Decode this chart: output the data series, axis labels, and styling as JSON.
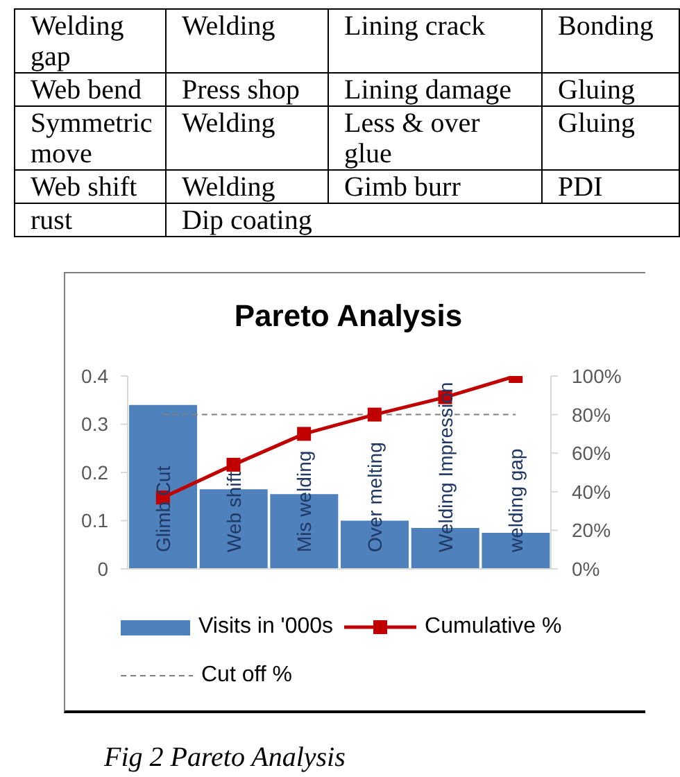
{
  "chart_data": [
    {
      "type": "other",
      "annotations": [
        "Welding gap",
        "Welding",
        "Lining crack",
        "Bonding",
        "Web bend",
        "Press shop",
        "Lining damage",
        "Gluing",
        "Symmetric move",
        "Welding",
        "Less & over glue",
        "Gluing",
        "Web shift",
        "Welding",
        "Gimb burr",
        "PDI",
        "rust",
        "Dip coating"
      ]
    },
    {
      "type": "bar",
      "title": "Pareto Analysis",
      "categories": [
        "Glimb Cut",
        "Web shift",
        "Mis welding",
        "Over melting",
        "Welding Impression",
        "welding gap"
      ],
      "series": [
        {
          "name": "Visits in '000s",
          "type": "bar",
          "color": "#4f81bd",
          "values": [
            0.34,
            0.165,
            0.155,
            0.1,
            0.085,
            0.075
          ]
        },
        {
          "name": "Cumulative %",
          "type": "line",
          "axis": "y2",
          "color": "#c00000",
          "marker": "square",
          "line_style": "solid",
          "values": [
            37,
            54,
            70,
            80,
            89,
            100
          ]
        },
        {
          "name": "Cut off %",
          "type": "line",
          "axis": "y2",
          "color": "#808080",
          "marker": "none",
          "line_style": "dashed",
          "values": [
            80,
            80,
            80,
            80,
            80,
            80
          ]
        }
      ],
      "ylim": [
        0,
        0.4
      ],
      "yticks": [
        0,
        0.1,
        0.2,
        0.3,
        0.4
      ],
      "y2lim": [
        0,
        100
      ],
      "y2ticks": [
        {
          "value": 0,
          "label": "0%"
        },
        {
          "value": 20,
          "label": "20%"
        },
        {
          "value": 40,
          "label": "40%"
        },
        {
          "value": 60,
          "label": "60%"
        },
        {
          "value": 80,
          "label": "80%"
        },
        {
          "value": 100,
          "label": "100%"
        }
      ],
      "legend": "bottom",
      "annotations": [
        "Fig 2 Pareto Analysis"
      ]
    }
  ]
}
